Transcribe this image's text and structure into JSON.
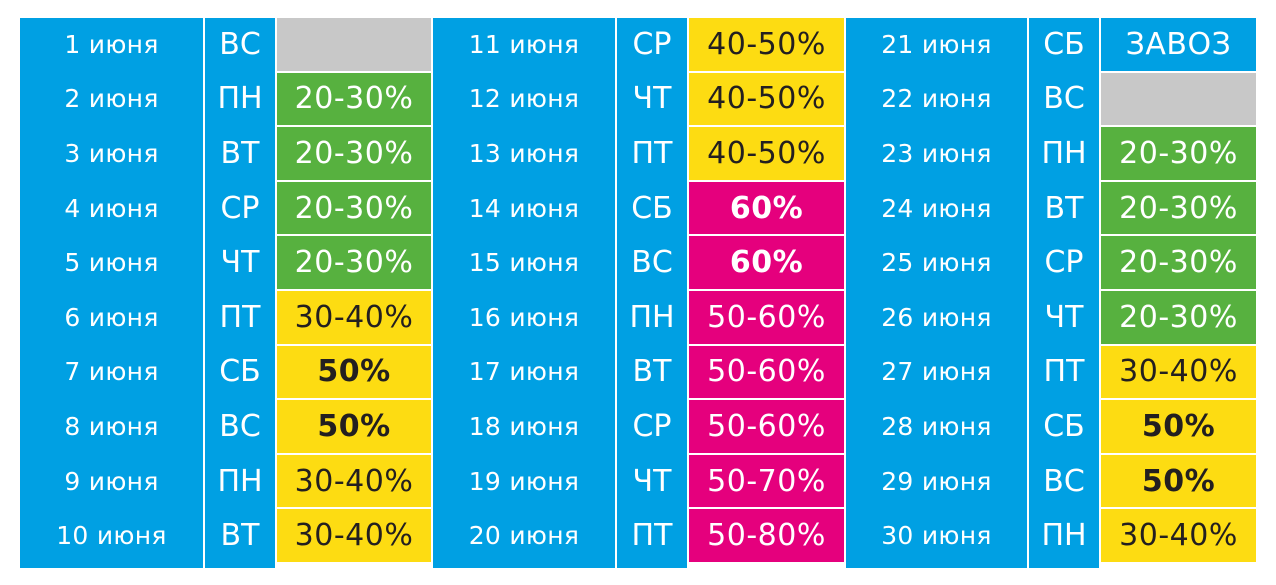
{
  "colors": {
    "blue": "#00a0e3",
    "green": "#57b13f",
    "yellow": "#fddc12",
    "pink": "#e5007d",
    "gray": "#c8c8c8",
    "white": "#ffffff",
    "dark_text": "#231f20"
  },
  "groups": [
    {
      "rows": [
        {
          "date": "1 июня",
          "dow": "ВС",
          "value": "",
          "status": "gray"
        },
        {
          "date": "2 июня",
          "dow": "ПН",
          "value": "20-30%",
          "status": "green"
        },
        {
          "date": "3 июня",
          "dow": "ВТ",
          "value": "20-30%",
          "status": "green"
        },
        {
          "date": "4 июня",
          "dow": "СР",
          "value": "20-30%",
          "status": "green"
        },
        {
          "date": "5 июня",
          "dow": "ЧТ",
          "value": "20-30%",
          "status": "green"
        },
        {
          "date": "6 июня",
          "dow": "ПТ",
          "value": "30-40%",
          "status": "yellow"
        },
        {
          "date": "7 июня",
          "dow": "СБ",
          "value": "50%",
          "status": "yellow-bold"
        },
        {
          "date": "8 июня",
          "dow": "ВС",
          "value": "50%",
          "status": "yellow-bold"
        },
        {
          "date": "9 июня",
          "dow": "ПН",
          "value": "30-40%",
          "status": "yellow"
        },
        {
          "date": "10 июня",
          "dow": "ВТ",
          "value": "30-40%",
          "status": "yellow"
        }
      ]
    },
    {
      "rows": [
        {
          "date": "11 июня",
          "dow": "СР",
          "value": "40-50%",
          "status": "yellow"
        },
        {
          "date": "12 июня",
          "dow": "ЧТ",
          "value": "40-50%",
          "status": "yellow"
        },
        {
          "date": "13 июня",
          "dow": "ПТ",
          "value": "40-50%",
          "status": "yellow"
        },
        {
          "date": "14 июня",
          "dow": "СБ",
          "value": "60%",
          "status": "pink-bold"
        },
        {
          "date": "15 июня",
          "dow": "ВС",
          "value": "60%",
          "status": "pink-bold"
        },
        {
          "date": "16 июня",
          "dow": "ПН",
          "value": "50-60%",
          "status": "pink"
        },
        {
          "date": "17 июня",
          "dow": "ВТ",
          "value": "50-60%",
          "status": "pink"
        },
        {
          "date": "18 июня",
          "dow": "СР",
          "value": "50-60%",
          "status": "pink"
        },
        {
          "date": "19 июня",
          "dow": "ЧТ",
          "value": "50-70%",
          "status": "pink"
        },
        {
          "date": "20 июня",
          "dow": "ПТ",
          "value": "50-80%",
          "status": "pink"
        }
      ]
    },
    {
      "rows": [
        {
          "date": "21 июня",
          "dow": "СБ",
          "value": "ЗАВОЗ",
          "status": "blue"
        },
        {
          "date": "22 июня",
          "dow": "ВС",
          "value": "",
          "status": "gray"
        },
        {
          "date": "23 июня",
          "dow": "ПН",
          "value": "20-30%",
          "status": "green"
        },
        {
          "date": "24 июня",
          "dow": "ВТ",
          "value": "20-30%",
          "status": "green"
        },
        {
          "date": "25 июня",
          "dow": "СР",
          "value": "20-30%",
          "status": "green"
        },
        {
          "date": "26 июня",
          "dow": "ЧТ",
          "value": "20-30%",
          "status": "green"
        },
        {
          "date": "27 июня",
          "dow": "ПТ",
          "value": "30-40%",
          "status": "yellow"
        },
        {
          "date": "28 июня",
          "dow": "СБ",
          "value": "50%",
          "status": "yellow-bold"
        },
        {
          "date": "29 июня",
          "dow": "ВС",
          "value": "50%",
          "status": "yellow-bold"
        },
        {
          "date": "30 июня",
          "dow": "ПН",
          "value": "30-40%",
          "status": "yellow"
        }
      ]
    }
  ]
}
